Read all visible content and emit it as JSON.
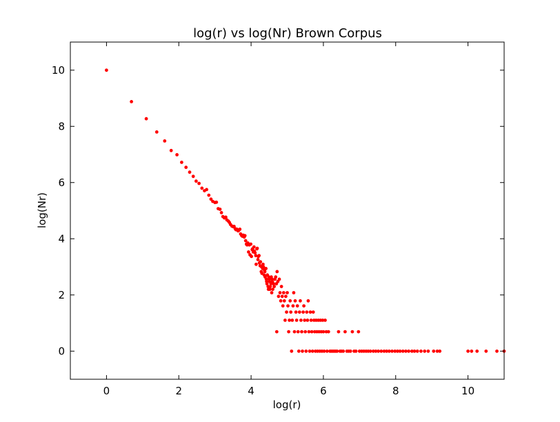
{
  "chart_data": {
    "type": "scatter",
    "title": "log(r) vs log(Nr) Brown Corpus",
    "xlabel": "log(r)",
    "ylabel": "log(Nr)",
    "xlim": [
      -1,
      11
    ],
    "ylim": [
      -1,
      11
    ],
    "xticks": [
      0,
      2,
      4,
      6,
      8,
      10
    ],
    "yticks": [
      0,
      2,
      4,
      6,
      8,
      10
    ],
    "grid": false,
    "marker_color": "#ff0000",
    "series": [
      {
        "points": [
          [
            0,
            10.0
          ],
          [
            0.69,
            8.88
          ],
          [
            1.1,
            8.27
          ],
          [
            1.39,
            7.8
          ],
          [
            1.61,
            7.48
          ],
          [
            1.79,
            7.14
          ],
          [
            1.95,
            6.99
          ],
          [
            2.08,
            6.72
          ],
          [
            2.2,
            6.54
          ],
          [
            2.3,
            6.37
          ],
          [
            2.4,
            6.22
          ],
          [
            2.48,
            6.05
          ],
          [
            2.56,
            5.97
          ],
          [
            2.64,
            5.8
          ],
          [
            2.71,
            5.71
          ],
          [
            2.77,
            5.75
          ],
          [
            2.83,
            5.55
          ],
          [
            2.89,
            5.41
          ],
          [
            2.94,
            5.33
          ],
          [
            3.0,
            5.29
          ],
          [
            3.04,
            5.3
          ],
          [
            3.09,
            5.07
          ],
          [
            3.14,
            5.05
          ],
          [
            3.18,
            4.93
          ],
          [
            3.22,
            4.79
          ],
          [
            3.26,
            4.74
          ],
          [
            3.3,
            4.77
          ],
          [
            3.33,
            4.67
          ],
          [
            3.37,
            4.63
          ],
          [
            3.4,
            4.58
          ],
          [
            3.43,
            4.51
          ],
          [
            3.47,
            4.45
          ],
          [
            3.5,
            4.43
          ],
          [
            3.53,
            4.44
          ],
          [
            3.56,
            4.36
          ],
          [
            3.58,
            4.32
          ],
          [
            3.61,
            4.34
          ],
          [
            3.64,
            4.28
          ],
          [
            3.66,
            4.3
          ],
          [
            3.69,
            4.34
          ],
          [
            3.71,
            4.17
          ],
          [
            3.74,
            4.11
          ],
          [
            3.76,
            4.09
          ],
          [
            3.78,
            4.13
          ],
          [
            3.81,
            4.06
          ],
          [
            3.83,
            4.11
          ],
          [
            3.85,
            3.93
          ],
          [
            3.87,
            3.81
          ],
          [
            3.89,
            3.78
          ],
          [
            3.91,
            3.85
          ],
          [
            3.93,
            3.53
          ],
          [
            3.95,
            3.78
          ],
          [
            3.97,
            3.43
          ],
          [
            3.99,
            3.81
          ],
          [
            4.01,
            3.37
          ],
          [
            4.03,
            3.61
          ],
          [
            4.04,
            3.64
          ],
          [
            4.06,
            3.53
          ],
          [
            4.08,
            3.71
          ],
          [
            4.09,
            3.56
          ],
          [
            4.11,
            3.5
          ],
          [
            4.13,
            3.4
          ],
          [
            4.14,
            3.09
          ],
          [
            4.16,
            3.64
          ],
          [
            4.17,
            3.66
          ],
          [
            4.19,
            3.26
          ],
          [
            4.2,
            3.37
          ],
          [
            4.22,
            3.4
          ],
          [
            4.23,
            3.14
          ],
          [
            4.25,
            3.04
          ],
          [
            4.26,
            3.18
          ],
          [
            4.28,
            2.83
          ],
          [
            4.29,
            3.0
          ],
          [
            4.3,
            2.77
          ],
          [
            4.32,
            2.94
          ],
          [
            4.33,
            3.09
          ],
          [
            4.34,
            3.0
          ],
          [
            4.36,
            2.71
          ],
          [
            4.37,
            2.89
          ],
          [
            4.38,
            2.83
          ],
          [
            4.39,
            2.64
          ],
          [
            4.41,
            2.94
          ],
          [
            4.42,
            2.56
          ],
          [
            4.43,
            2.48
          ],
          [
            4.44,
            2.4
          ],
          [
            4.45,
            2.71
          ],
          [
            4.47,
            2.3
          ],
          [
            4.48,
            2.2
          ],
          [
            4.49,
            2.64
          ],
          [
            4.5,
            2.56
          ],
          [
            4.51,
            2.48
          ],
          [
            4.52,
            2.2
          ],
          [
            4.53,
            2.3
          ],
          [
            4.55,
            2.4
          ],
          [
            4.56,
            2.64
          ],
          [
            4.57,
            2.08
          ],
          [
            4.58,
            2.56
          ],
          [
            4.59,
            2.48
          ],
          [
            4.6,
            2.2
          ],
          [
            4.62,
            2.4
          ],
          [
            4.64,
            2.3
          ],
          [
            4.66,
            2.56
          ],
          [
            4.68,
            2.64
          ],
          [
            4.7,
            2.4
          ],
          [
            4.71,
            0.69
          ],
          [
            4.72,
            2.83
          ],
          [
            4.74,
            2.48
          ],
          [
            4.76,
            1.95
          ],
          [
            4.78,
            2.56
          ],
          [
            4.8,
            2.08
          ],
          [
            4.82,
            1.79
          ],
          [
            4.84,
            2.3
          ],
          [
            4.86,
            1.95
          ],
          [
            4.88,
            1.61
          ],
          [
            4.9,
            2.08
          ],
          [
            4.92,
            1.79
          ],
          [
            4.94,
            1.1
          ],
          [
            4.96,
            1.95
          ],
          [
            4.98,
            1.39
          ],
          [
            5.0,
            2.08
          ],
          [
            5.02,
            1.61
          ],
          [
            5.04,
            0.69
          ],
          [
            5.06,
            1.1
          ],
          [
            5.08,
            1.79
          ],
          [
            5.1,
            1.39
          ],
          [
            5.12,
            0.0
          ],
          [
            5.14,
            1.1
          ],
          [
            5.16,
            1.61
          ],
          [
            5.18,
            2.08
          ],
          [
            5.2,
            0.69
          ],
          [
            5.22,
            1.79
          ],
          [
            5.24,
            1.39
          ],
          [
            5.26,
            1.1
          ],
          [
            5.28,
            1.61
          ],
          [
            5.3,
            0.69
          ],
          [
            5.32,
            0.0
          ],
          [
            5.34,
            1.39
          ],
          [
            5.36,
            1.79
          ],
          [
            5.38,
            1.1
          ],
          [
            5.4,
            0.69
          ],
          [
            5.42,
            0.0
          ],
          [
            5.44,
            1.39
          ],
          [
            5.46,
            1.61
          ],
          [
            5.48,
            1.1
          ],
          [
            5.5,
            0.69
          ],
          [
            5.52,
            0.0
          ],
          [
            5.54,
            1.39
          ],
          [
            5.56,
            1.1
          ],
          [
            5.58,
            1.79
          ],
          [
            5.6,
            0.69
          ],
          [
            5.62,
            0.0
          ],
          [
            5.64,
            1.39
          ],
          [
            5.66,
            1.1
          ],
          [
            5.68,
            0.69
          ],
          [
            5.7,
            0.0
          ],
          [
            5.72,
            1.39
          ],
          [
            5.74,
            1.1
          ],
          [
            5.76,
            0.69
          ],
          [
            5.78,
            0.0
          ],
          [
            5.8,
            1.1
          ],
          [
            5.82,
            0.69
          ],
          [
            5.84,
            0.0
          ],
          [
            5.86,
            1.1
          ],
          [
            5.88,
            0.69
          ],
          [
            5.9,
            0.0
          ],
          [
            5.92,
            1.1
          ],
          [
            5.94,
            0.69
          ],
          [
            5.96,
            0.0
          ],
          [
            5.98,
            1.1
          ],
          [
            6.0,
            0.69
          ],
          [
            6.02,
            0.0
          ],
          [
            6.05,
            1.1
          ],
          [
            6.08,
            0.69
          ],
          [
            6.1,
            0.0
          ],
          [
            6.14,
            0.69
          ],
          [
            6.18,
            0.0
          ],
          [
            6.22,
            0.0
          ],
          [
            6.26,
            0.0
          ],
          [
            6.3,
            0.0
          ],
          [
            6.34,
            0.0
          ],
          [
            6.38,
            0.0
          ],
          [
            6.42,
            0.69
          ],
          [
            6.46,
            0.0
          ],
          [
            6.5,
            0.0
          ],
          [
            6.55,
            0.0
          ],
          [
            6.6,
            0.69
          ],
          [
            6.65,
            0.0
          ],
          [
            6.7,
            0.0
          ],
          [
            6.75,
            0.0
          ],
          [
            6.8,
            0.69
          ],
          [
            6.85,
            0.0
          ],
          [
            6.9,
            0.0
          ],
          [
            6.97,
            0.69
          ],
          [
            7.0,
            0.0
          ],
          [
            7.06,
            0.0
          ],
          [
            7.12,
            0.0
          ],
          [
            7.18,
            0.0
          ],
          [
            7.24,
            0.0
          ],
          [
            7.3,
            0.0
          ],
          [
            7.38,
            0.0
          ],
          [
            7.45,
            0.0
          ],
          [
            7.52,
            0.0
          ],
          [
            7.6,
            0.0
          ],
          [
            7.68,
            0.0
          ],
          [
            7.75,
            0.0
          ],
          [
            7.82,
            0.0
          ],
          [
            7.9,
            0.0
          ],
          [
            7.98,
            0.0
          ],
          [
            8.05,
            0.0
          ],
          [
            8.12,
            0.0
          ],
          [
            8.2,
            0.0
          ],
          [
            8.28,
            0.0
          ],
          [
            8.36,
            0.0
          ],
          [
            8.45,
            0.0
          ],
          [
            8.52,
            0.0
          ],
          [
            8.6,
            0.0
          ],
          [
            8.7,
            0.0
          ],
          [
            8.8,
            0.0
          ],
          [
            8.9,
            0.0
          ],
          [
            9.05,
            0.0
          ],
          [
            9.15,
            0.0
          ],
          [
            9.22,
            0.0
          ],
          [
            10.0,
            0.0
          ],
          [
            10.1,
            0.0
          ],
          [
            10.25,
            0.0
          ],
          [
            10.5,
            0.0
          ],
          [
            10.8,
            0.0
          ],
          [
            11.0,
            0.0
          ]
        ]
      }
    ]
  }
}
